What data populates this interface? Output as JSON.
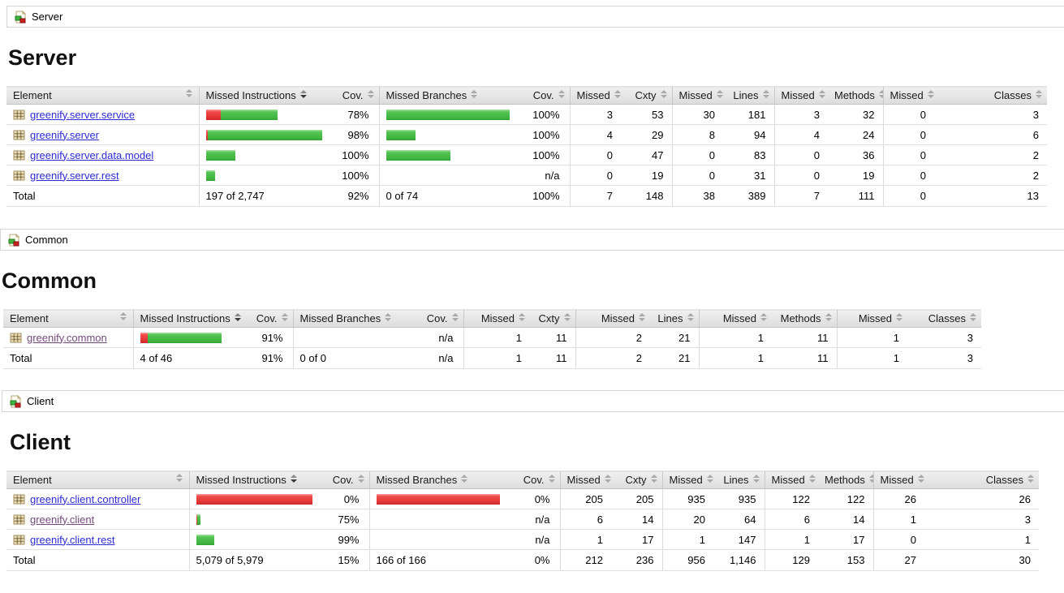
{
  "colors": {
    "bar_red": "#e03333",
    "bar_green": "#3fb53f",
    "link": "#2b2bd5",
    "link_visited": "#74487c",
    "header_bg": "#e2e2e2"
  },
  "columns": {
    "element": "Element",
    "missed_instructions": "Missed Instructions",
    "cov1": "Cov.",
    "missed_branches": "Missed Branches",
    "cov2": "Cov.",
    "missed1": "Missed",
    "cxty": "Cxty",
    "missed2": "Missed",
    "lines": "Lines",
    "missed3": "Missed",
    "methods": "Methods",
    "missed4": "Missed",
    "classes": "Classes"
  },
  "sections": [
    {
      "id": "server",
      "breadcrumb": "Server",
      "heading": "Server",
      "rows": [
        {
          "element": "greenify.server.service",
          "visited": false,
          "instr_bar": {
            "red": 18,
            "green": 70
          },
          "instr_cov": "78%",
          "branch_bar": {
            "red": 0,
            "green": 152
          },
          "branch_cov": "100%",
          "missed_cxty": "3",
          "cxty": "53",
          "missed_lines": "30",
          "lines": "181",
          "missed_methods": "3",
          "methods": "32",
          "missed_classes": "0",
          "classes": "3"
        },
        {
          "element": "greenify.server",
          "visited": false,
          "instr_bar": {
            "red": 3,
            "green": 147
          },
          "instr_cov": "98%",
          "branch_bar": {
            "red": 0,
            "green": 36
          },
          "branch_cov": "100%",
          "missed_cxty": "4",
          "cxty": "29",
          "missed_lines": "8",
          "lines": "94",
          "missed_methods": "4",
          "methods": "24",
          "missed_classes": "0",
          "classes": "6"
        },
        {
          "element": "greenify.server.data.model",
          "visited": false,
          "instr_bar": {
            "red": 0,
            "green": 36
          },
          "instr_cov": "100%",
          "branch_bar": {
            "red": 0,
            "green": 79
          },
          "branch_cov": "100%",
          "missed_cxty": "0",
          "cxty": "47",
          "missed_lines": "0",
          "lines": "83",
          "missed_methods": "0",
          "methods": "36",
          "missed_classes": "0",
          "classes": "2"
        },
        {
          "element": "greenify.server.rest",
          "visited": false,
          "instr_bar": {
            "red": 0,
            "green": 11
          },
          "instr_cov": "100%",
          "branch_bar": {
            "red": 0,
            "green": 0
          },
          "branch_cov": "n/a",
          "missed_cxty": "0",
          "cxty": "19",
          "missed_lines": "0",
          "lines": "31",
          "missed_methods": "0",
          "methods": "19",
          "missed_classes": "0",
          "classes": "2"
        }
      ],
      "total": {
        "label": "Total",
        "instr": "197 of 2,747",
        "instr_cov": "92%",
        "branch": "0 of 74",
        "branch_cov": "100%",
        "missed_cxty": "7",
        "cxty": "148",
        "missed_lines": "38",
        "lines": "389",
        "missed_methods": "7",
        "methods": "111",
        "missed_classes": "0",
        "classes": "13"
      }
    },
    {
      "id": "common",
      "breadcrumb": "Common",
      "heading": "Common",
      "rows": [
        {
          "element": "greenify.common",
          "visited": true,
          "instr_bar": {
            "red": 9,
            "green": 91
          },
          "instr_cov": "91%",
          "branch_bar": {
            "red": 0,
            "green": 0
          },
          "branch_cov": "n/a",
          "missed_cxty": "1",
          "cxty": "11",
          "missed_lines": "2",
          "lines": "21",
          "missed_methods": "1",
          "methods": "11",
          "missed_classes": "1",
          "classes": "3"
        }
      ],
      "total": {
        "label": "Total",
        "instr": "4 of 46",
        "instr_cov": "91%",
        "branch": "0 of 0",
        "branch_cov": "n/a",
        "missed_cxty": "1",
        "cxty": "11",
        "missed_lines": "2",
        "lines": "21",
        "missed_methods": "1",
        "methods": "11",
        "missed_classes": "1",
        "classes": "3"
      }
    },
    {
      "id": "client",
      "breadcrumb": "Client",
      "heading": "Client",
      "rows": [
        {
          "element": "greenify.client.controller",
          "visited": false,
          "instr_bar": {
            "red": 152,
            "green": 0
          },
          "instr_cov": "0%",
          "branch_bar": {
            "red": 152,
            "green": 0
          },
          "branch_cov": "0%",
          "missed_cxty": "205",
          "cxty": "205",
          "missed_lines": "935",
          "lines": "935",
          "missed_methods": "122",
          "methods": "122",
          "missed_classes": "26",
          "classes": "26"
        },
        {
          "element": "greenify.client",
          "visited": true,
          "instr_bar": {
            "red": 1,
            "green": 4
          },
          "instr_cov": "75%",
          "branch_bar": {
            "red": 0,
            "green": 0
          },
          "branch_cov": "n/a",
          "missed_cxty": "6",
          "cxty": "14",
          "missed_lines": "20",
          "lines": "64",
          "missed_methods": "6",
          "methods": "14",
          "missed_classes": "1",
          "classes": "3"
        },
        {
          "element": "greenify.client.rest",
          "visited": false,
          "instr_bar": {
            "red": 0,
            "green": 22
          },
          "instr_cov": "99%",
          "branch_bar": {
            "red": 0,
            "green": 0
          },
          "branch_cov": "n/a",
          "missed_cxty": "1",
          "cxty": "17",
          "missed_lines": "1",
          "lines": "147",
          "missed_methods": "1",
          "methods": "17",
          "missed_classes": "0",
          "classes": "1"
        }
      ],
      "total": {
        "label": "Total",
        "instr": "5,079 of 5,979",
        "instr_cov": "15%",
        "branch": "166 of 166",
        "branch_cov": "0%",
        "missed_cxty": "212",
        "cxty": "236",
        "missed_lines": "956",
        "lines": "1,146",
        "missed_methods": "129",
        "methods": "153",
        "missed_classes": "27",
        "classes": "30"
      }
    }
  ]
}
